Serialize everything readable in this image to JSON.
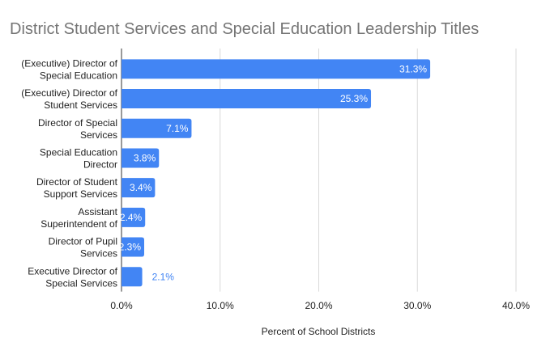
{
  "chart_data": {
    "type": "bar",
    "orientation": "horizontal",
    "title": "District Student Services and Special Education Leadership Titles",
    "xlabel": "Percent of School Districts",
    "ylabel": "",
    "categories": [
      [
        "(Executive) Director of",
        "Special Education"
      ],
      [
        "(Executive) Director of",
        "Student Services"
      ],
      [
        "Director of Special",
        "Services"
      ],
      [
        "Special Education",
        "Director"
      ],
      [
        "Director of Student",
        "Support Services"
      ],
      [
        "Assistant",
        "Superintendent of"
      ],
      [
        "Director of Pupil",
        "Services"
      ],
      [
        "Executive Director of",
        "Special Services"
      ]
    ],
    "values": [
      31.3,
      25.3,
      7.1,
      3.8,
      3.4,
      2.4,
      2.3,
      2.1
    ],
    "data_labels": [
      "31.3%",
      "25.3%",
      "7.1%",
      "3.8%",
      "3.4%",
      "2.4%",
      "2.3%",
      "2.1%"
    ],
    "xlim": [
      0,
      40
    ],
    "xticks": [
      0,
      10,
      20,
      30,
      40
    ],
    "xtick_labels": [
      "0.0%",
      "10.0%",
      "20.0%",
      "30.0%",
      "40.0%"
    ],
    "grid": true,
    "legend": "none",
    "colors": {
      "bar": "#4285f4",
      "title": "#757575",
      "grid": "#d9d9d9",
      "text": "#222222"
    }
  }
}
